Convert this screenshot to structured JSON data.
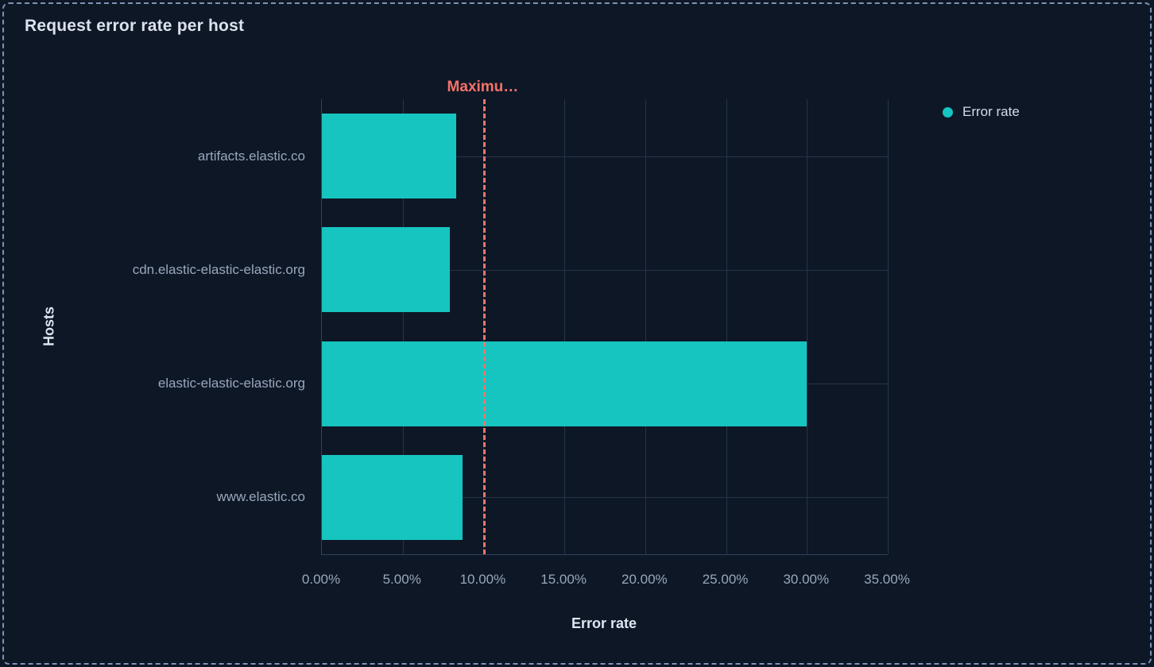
{
  "panel": {
    "title": "Request error rate per host",
    "background": "#0e1726",
    "border_color": "#7e92b2"
  },
  "legend": {
    "position": "right",
    "items": [
      {
        "label": "Error rate",
        "color": "#16c5c0"
      }
    ]
  },
  "chart_data": {
    "type": "bar",
    "orientation": "horizontal",
    "title": "Request error rate per host",
    "categories": [
      "artifacts.elastic.co",
      "cdn.elastic-elastic-elastic.org",
      "elastic-elastic-elastic.org",
      "www.elastic.co"
    ],
    "series": [
      {
        "name": "Error rate",
        "color": "#16c5c0",
        "values": [
          8.3,
          7.9,
          30.0,
          8.7
        ]
      }
    ],
    "value_unit": "%",
    "xlabel": "Error rate",
    "ylabel": "Hosts",
    "xlim": [
      0,
      35
    ],
    "x_ticks": [
      "0.00%",
      "5.00%",
      "10.00%",
      "15.00%",
      "20.00%",
      "25.00%",
      "30.00%",
      "35.00%"
    ],
    "x_tick_values": [
      0,
      5,
      10,
      15,
      20,
      25,
      30,
      35
    ],
    "grid": true,
    "threshold": {
      "value": 10,
      "label": "Maximu…",
      "color": "#f6726a",
      "style": "dashed"
    }
  }
}
